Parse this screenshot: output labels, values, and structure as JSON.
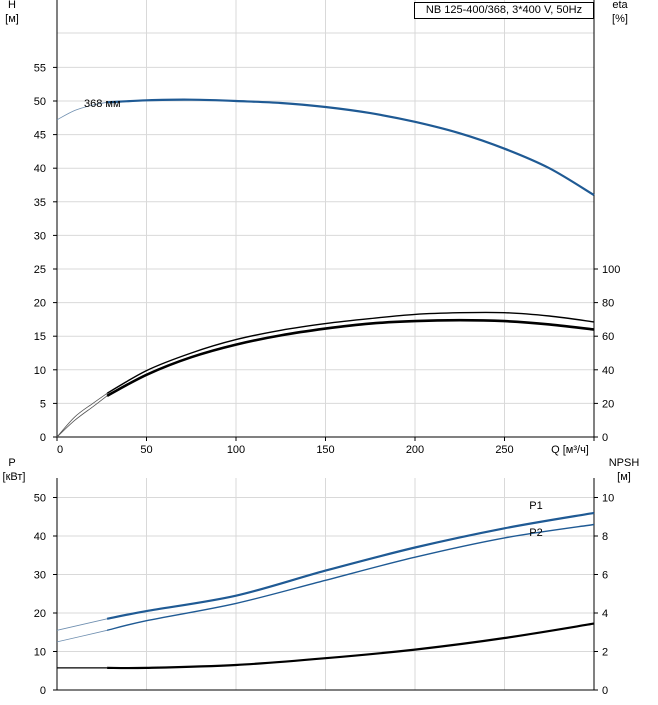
{
  "chart_data": [
    {
      "type": "line",
      "title": "NB 125-400/368, 3*400 V, 50Hz",
      "xlabel": "Q [м³/ч]",
      "xlim": [
        0,
        300
      ],
      "xticks": [
        0,
        50,
        100,
        150,
        200,
        250
      ],
      "y_left": {
        "label_line1": "H",
        "label_line2": "[м]",
        "ylim": [
          0,
          60
        ],
        "ticks": [
          0,
          5,
          10,
          15,
          20,
          25,
          30,
          35,
          40,
          45,
          50,
          55
        ]
      },
      "y_right": {
        "label_line1": "eta",
        "label_line2": "[%]",
        "ylim": [
          0,
          240
        ],
        "ticks": [
          0,
          20,
          40,
          60,
          80,
          100
        ]
      },
      "grid": true,
      "series": [
        {
          "name": "368 мм",
          "axis": "left",
          "color": "#1f5a94",
          "x": [
            0,
            10,
            20,
            28,
            50,
            75,
            100,
            125,
            150,
            175,
            200,
            225,
            250,
            275,
            300
          ],
          "y": [
            47.2,
            48.6,
            49.4,
            49.8,
            50.1,
            50.2,
            50.0,
            49.7,
            49.1,
            48.2,
            46.9,
            45.2,
            42.9,
            40.0,
            36.0
          ]
        },
        {
          "axis": "right",
          "color": "#000000",
          "x": [
            0,
            10,
            20,
            28,
            50,
            75,
            100,
            125,
            150,
            175,
            200,
            225,
            250,
            275,
            300
          ],
          "y": [
            0,
            10,
            18,
            24.5,
            37,
            47.5,
            55,
            60.5,
            64.5,
            67.5,
            69,
            69.5,
            69,
            67,
            64
          ]
        },
        {
          "axis": "right",
          "color": "#000000",
          "x": [
            0,
            10,
            20,
            28,
            50,
            75,
            100,
            125,
            150,
            175,
            200,
            225,
            250,
            275,
            300
          ],
          "y": [
            0,
            12,
            20,
            26,
            39.5,
            50,
            58,
            63.5,
            67.5,
            70.5,
            73,
            74,
            74,
            72,
            68.5
          ]
        }
      ]
    },
    {
      "type": "line",
      "xlim": [
        0,
        300
      ],
      "y_left": {
        "label_line1": "P",
        "label_line2": "[кВт]",
        "ylim": [
          0,
          55
        ],
        "ticks": [
          0,
          10,
          20,
          30,
          40,
          50
        ]
      },
      "y_right": {
        "label_line1": "NPSH",
        "label_line2": "[м]",
        "ylim": [
          0,
          11
        ],
        "ticks": [
          0,
          2,
          4,
          6,
          8,
          10
        ]
      },
      "grid": true,
      "series": [
        {
          "name": "P1",
          "axis": "left",
          "color": "#1f5a94",
          "x": [
            0,
            28,
            50,
            100,
            150,
            200,
            250,
            300
          ],
          "y": [
            15.5,
            18.5,
            20.5,
            24.5,
            31,
            37,
            42,
            46
          ]
        },
        {
          "name": "P2",
          "axis": "left",
          "color": "#1f5a94",
          "x": [
            0,
            28,
            50,
            100,
            150,
            200,
            250,
            300
          ],
          "y": [
            12.5,
            15.5,
            18,
            22.5,
            28.5,
            34.5,
            39.5,
            43
          ]
        },
        {
          "axis": "right",
          "color": "#000000",
          "x": [
            0,
            28,
            50,
            100,
            150,
            200,
            250,
            300
          ],
          "y": [
            1.15,
            1.15,
            1.15,
            1.3,
            1.65,
            2.1,
            2.7,
            3.45
          ]
        }
      ]
    }
  ]
}
